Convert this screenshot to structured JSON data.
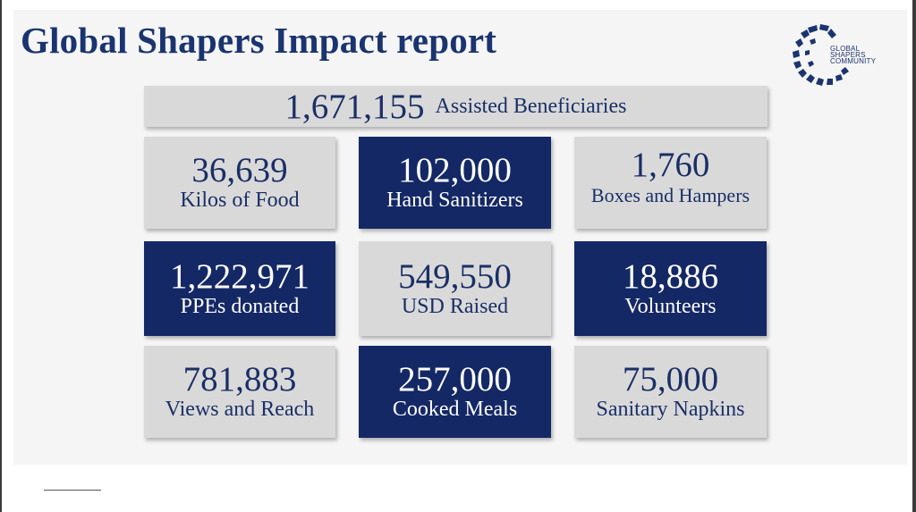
{
  "title": "Global Shapers Impact report",
  "logo": {
    "lines": [
      "GLOBAL",
      "SHAPERS",
      "COMMUNITY"
    ],
    "color": "#1a3470"
  },
  "banner": {
    "value": "1,671,155",
    "label": "Assisted Beneficiaries"
  },
  "stats": [
    {
      "value": "36,639",
      "label": "Kilos of Food",
      "style": "light"
    },
    {
      "value": "102,000",
      "label": "Hand Sanitizers",
      "style": "dark"
    },
    {
      "value": "1,760",
      "label": "Boxes and Hampers",
      "style": "light"
    },
    {
      "value": "1,222,971",
      "label": "PPEs donated",
      "style": "dark"
    },
    {
      "value": "549,550",
      "label": "USD Raised",
      "style": "light"
    },
    {
      "value": "18,886",
      "label": "Volunteers",
      "style": "dark"
    },
    {
      "value": "781,883",
      "label": "Views and Reach",
      "style": "light"
    },
    {
      "value": "257,000",
      "label": "Cooked Meals",
      "style": "dark"
    },
    {
      "value": "75,000",
      "label": "Sanitary Napkins",
      "style": "light"
    }
  ],
  "colors": {
    "navy": "#142866",
    "light_gray": "#d9d9d9",
    "title": "#1a3470"
  }
}
